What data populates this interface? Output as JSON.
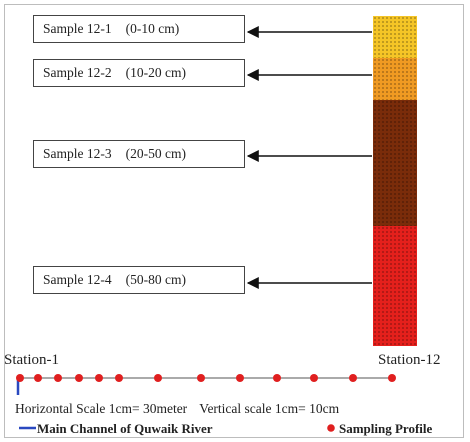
{
  "samples": [
    {
      "name": "Sample 12-1",
      "range": "(0-10 cm)"
    },
    {
      "name": "Sample 12-2",
      "range": "(10-20 cm)"
    },
    {
      "name": "Sample 12-3",
      "range": "(20-50 cm)"
    },
    {
      "name": "Sample 12-4",
      "range": "(50-80 cm)"
    }
  ],
  "layers": [
    {
      "color": "#f5c526"
    },
    {
      "color": "#f09a22"
    },
    {
      "color": "#7a2c0a"
    },
    {
      "color": "#e4201c"
    }
  ],
  "profile": {
    "start_label": "Station-1",
    "end_label": "Station-12",
    "point_count": 12,
    "point_color": "#e01f1f",
    "channel_color": "#2a49c0"
  },
  "scales": {
    "horizontal": "Horizontal Scale 1cm= 30meter",
    "vertical": "Vertical scale 1cm= 10cm"
  },
  "legend": {
    "channel_label": "Main Channel of Quwaik River",
    "points_label": "Sampling Profile"
  }
}
